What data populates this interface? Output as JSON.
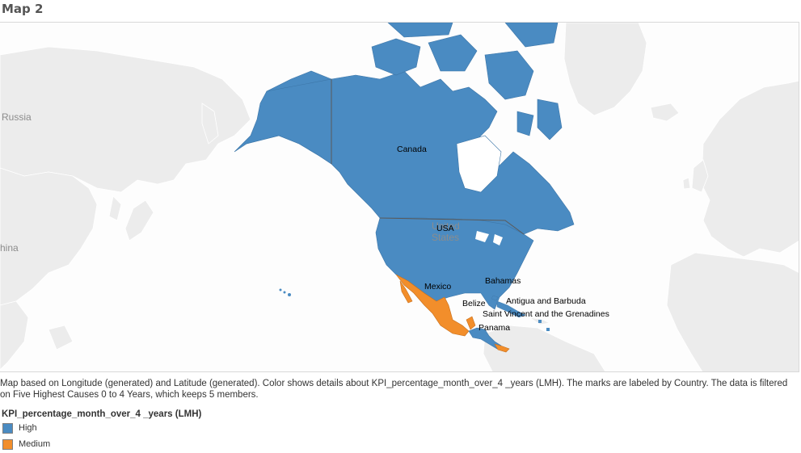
{
  "title": "Map 2",
  "colors": {
    "high": "#4a8bc2",
    "medium": "#f28e2b",
    "land": "#ececec",
    "border": "#ffffff",
    "water": "#fdfdfd"
  },
  "basemap_labels": {
    "russia": "Russia",
    "china": "hina",
    "united_states": "United States"
  },
  "country_labels": {
    "canada": "Canada",
    "usa": "USA",
    "mexico": "Mexico",
    "bahamas": "Bahamas",
    "belize": "Belize",
    "antigua": "Antigua and Barbuda",
    "svg_grenadines": "Saint Vincent and the Grenadines",
    "panama": "Panama"
  },
  "caption": "Map based on Longitude (generated) and Latitude (generated).  Color shows details about KPI_percentage_month_over_4 _years (LMH).  The marks are labeled by Country. The data is filtered on Five Highest Causes 0 to 4 Years, which keeps 5 members.",
  "legend": {
    "title": "KPI_percentage_month_over_4 _years (LMH)",
    "items": [
      {
        "label": "High",
        "color": "#4a8bc2"
      },
      {
        "label": "Medium",
        "color": "#f28e2b"
      }
    ]
  }
}
